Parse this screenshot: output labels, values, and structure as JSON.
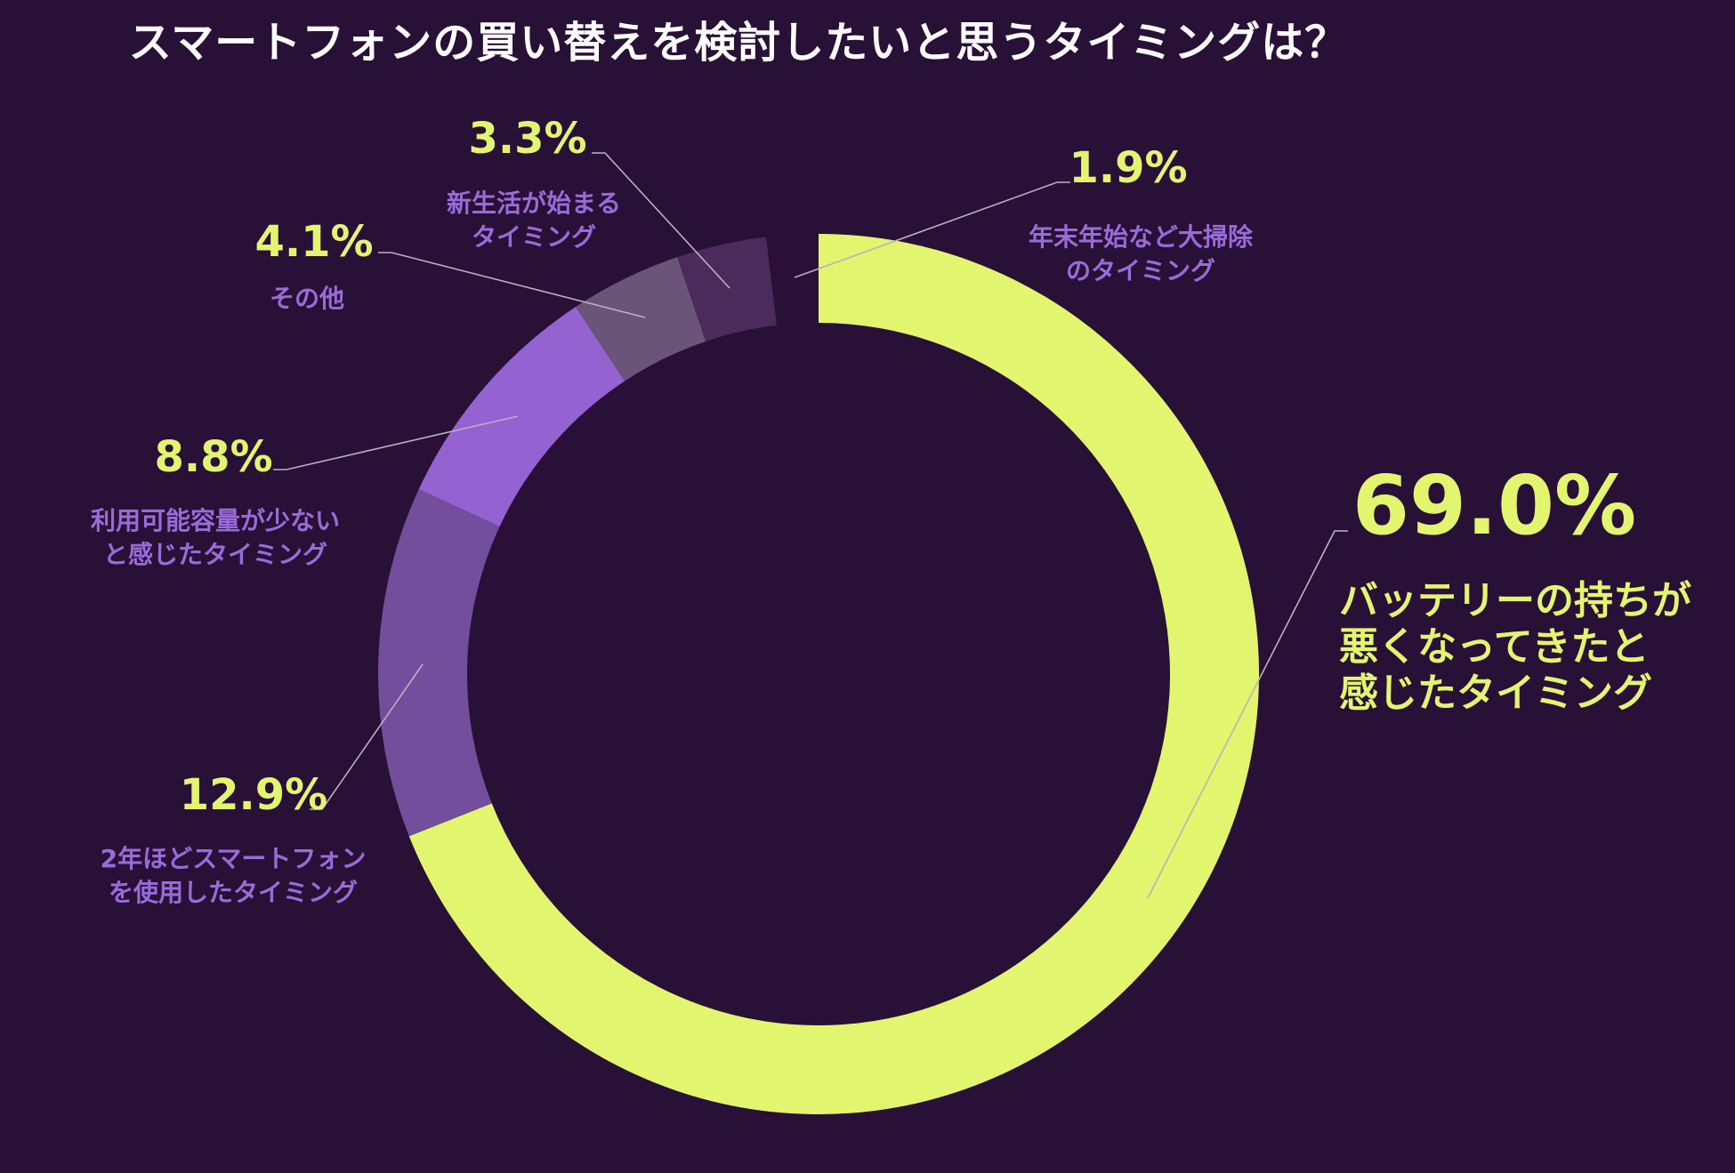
{
  "chart_data": {
    "type": "pie",
    "donut": true,
    "title": "スマートフォンの買い替えを検討したいと思うタイミングは？",
    "slices": [
      {
        "label_lines": [
          "バッテリーの持ちが",
          "悪くなってきたと",
          "感じたタイミング"
        ],
        "value": 69.0,
        "display": "69.0%",
        "color": "#e2f56f",
        "label_color": "#e2f56f"
      },
      {
        "label_lines": [
          "2年ほどスマートフォン",
          "を使用したタイミング"
        ],
        "value": 12.9,
        "display": "12.9%",
        "color": "#734e9c",
        "label_color": "#9a6bd8"
      },
      {
        "label_lines": [
          "利用可能容量が少ない",
          "と感じたタイミング"
        ],
        "value": 8.8,
        "display": "8.8%",
        "color": "#9562d2",
        "label_color": "#9a6bd8"
      },
      {
        "label_lines": [
          "その他"
        ],
        "value": 4.1,
        "display": "4.1%",
        "color": "#6a5478",
        "label_color": "#9a6bd8"
      },
      {
        "label_lines": [
          "新生活が始まる",
          "タイミング"
        ],
        "value": 3.3,
        "display": "3.3%",
        "color": "#4a2b5c",
        "label_color": "#9a6bd8"
      },
      {
        "label_lines": [
          "年末年始など大掃除",
          "のタイミング"
        ],
        "value": 1.9,
        "display": "1.9%",
        "color": "#291037",
        "label_color": "#9a6bd8"
      }
    ],
    "start_angle_deg": 0,
    "direction": "clockwise",
    "colors": {
      "background": "#291037",
      "title": "#ffffff",
      "percent_text": "#e2f56f",
      "leader_line": "#b9b3c0"
    }
  }
}
